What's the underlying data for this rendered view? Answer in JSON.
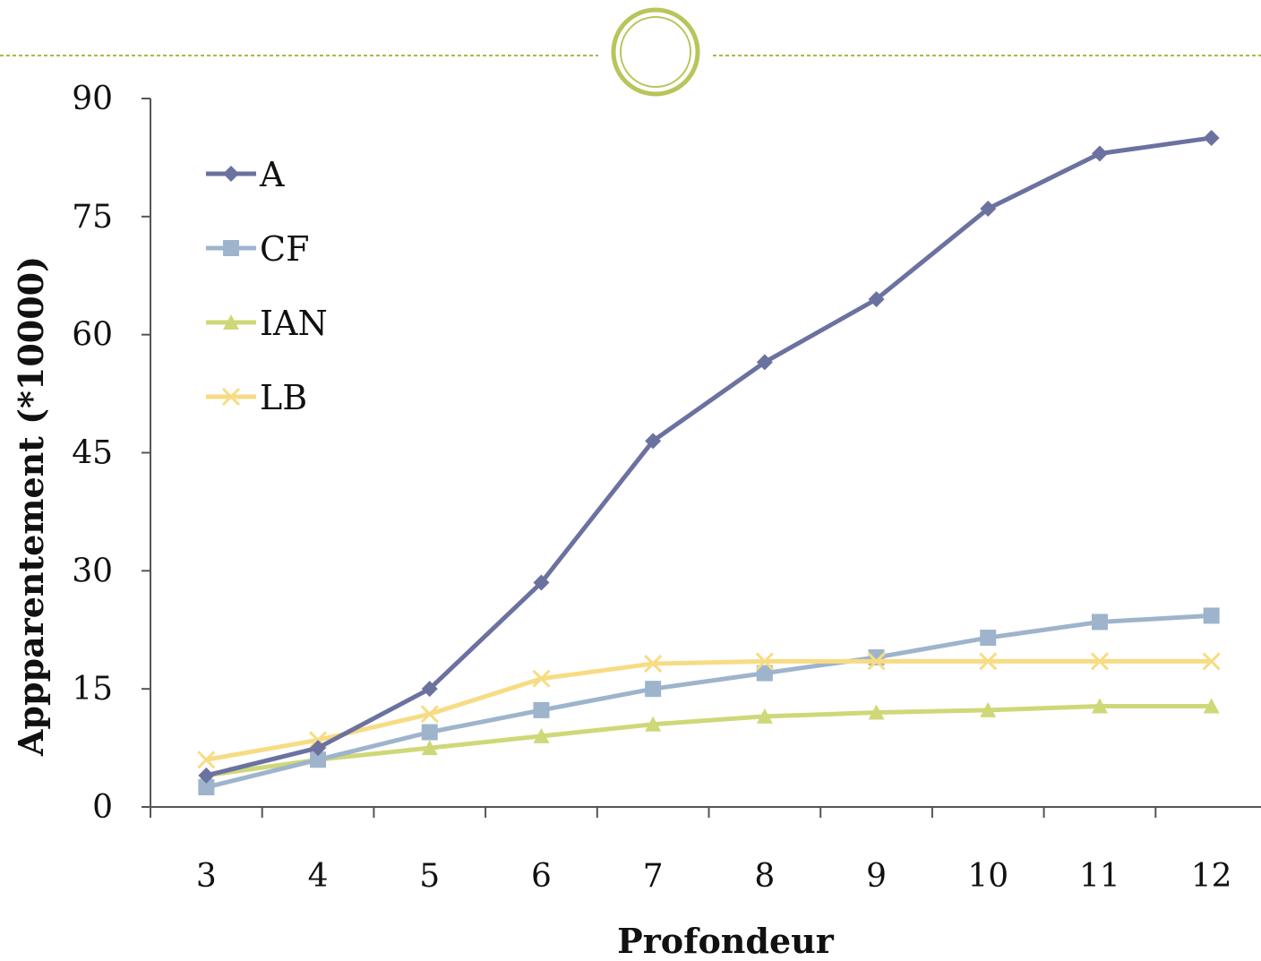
{
  "chart_data": {
    "type": "line",
    "xlabel": "Profondeur",
    "ylabel": "Appparentement (*10000)",
    "categories": [
      "3",
      "4",
      "5",
      "6",
      "7",
      "8",
      "9",
      "10",
      "11",
      "12"
    ],
    "ylim": [
      0,
      90
    ],
    "yticks": [
      0,
      15,
      30,
      45,
      60,
      75,
      90
    ],
    "grid": false,
    "legend_position": "top-left",
    "series": [
      {
        "name": "A",
        "color": "#6b72a0",
        "marker": "diamond",
        "values": [
          4,
          7.5,
          15,
          28.5,
          46.5,
          56.5,
          64.5,
          76,
          83,
          85
        ]
      },
      {
        "name": "CF",
        "color": "#9db4cc",
        "marker": "square",
        "values": [
          2.5,
          6,
          9.5,
          12.3,
          15,
          17,
          19,
          21.5,
          23.5,
          24.3
        ]
      },
      {
        "name": "IAN",
        "color": "#cfd878",
        "marker": "triangle",
        "values": [
          4,
          6,
          7.5,
          9,
          10.5,
          11.5,
          12,
          12.3,
          12.8,
          12.8
        ]
      },
      {
        "name": "LB",
        "color": "#f7dc83",
        "marker": "x",
        "values": [
          6,
          8.5,
          11.8,
          16.3,
          18.2,
          18.5,
          18.5,
          18.5,
          18.5,
          18.5
        ]
      }
    ]
  },
  "decoration": {
    "rule_color": "#a8ba4a",
    "ring_color": "#b9c55a"
  }
}
